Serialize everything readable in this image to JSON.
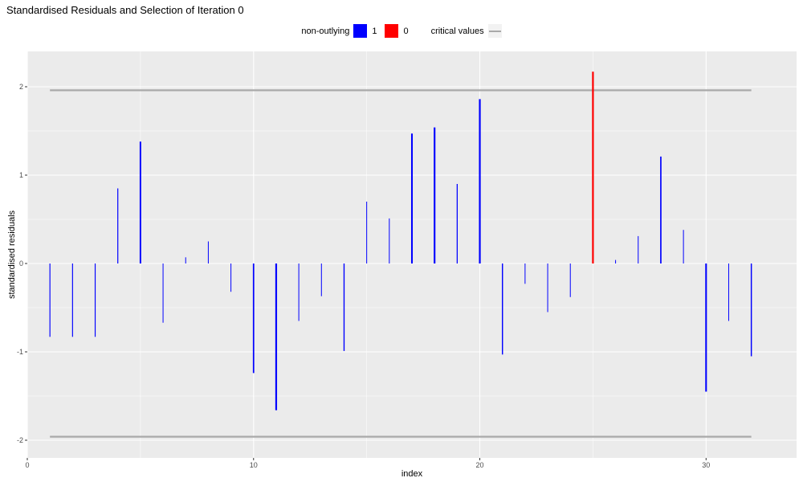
{
  "chart_data": {
    "type": "bar",
    "title": "Standardised Residuals and Selection of Iteration 0",
    "xlabel": "index",
    "ylabel": "standardised residuals",
    "xlim": [
      0,
      34
    ],
    "ylim": [
      -2.2,
      2.4
    ],
    "x_ticks": [
      0,
      10,
      20,
      30
    ],
    "y_ticks": [
      -2,
      -1,
      0,
      1,
      2
    ],
    "grid": true,
    "legend_position": "top",
    "legend": {
      "title": "non-outlying",
      "entries": [
        {
          "label": "1",
          "color": "#0000ff"
        },
        {
          "label": "0",
          "color": "#ff0000"
        }
      ],
      "line_label": "critical values",
      "line_color": "#a9a9a9"
    },
    "critical_values": [
      1.96,
      -1.96
    ],
    "critical_x_range": [
      1,
      32
    ],
    "x": [
      1,
      2,
      3,
      4,
      5,
      6,
      7,
      8,
      9,
      10,
      11,
      12,
      13,
      14,
      15,
      16,
      17,
      18,
      19,
      20,
      21,
      22,
      23,
      24,
      25,
      26,
      27,
      28,
      29,
      30,
      31,
      32
    ],
    "values": [
      -0.83,
      -0.83,
      -0.83,
      0.85,
      1.38,
      -0.67,
      0.07,
      0.25,
      -0.32,
      -1.24,
      -1.66,
      -0.65,
      -0.37,
      -0.99,
      0.7,
      0.51,
      1.47,
      1.54,
      0.9,
      1.86,
      -1.03,
      -0.23,
      -0.55,
      -0.38,
      2.17,
      0.04,
      0.31,
      1.21,
      0.38,
      -1.45,
      -0.65,
      -1.05
    ],
    "selected": [
      1,
      1,
      1,
      1,
      1,
      1,
      1,
      1,
      1,
      1,
      1,
      1,
      1,
      1,
      1,
      1,
      1,
      1,
      1,
      1,
      1,
      1,
      1,
      1,
      0,
      1,
      1,
      1,
      1,
      1,
      1,
      1
    ],
    "colors": {
      "non_outlying": "#0000ff",
      "outlying": "#ff0000",
      "critical": "#a9a9a9",
      "panel": "#ebebeb",
      "grid": "#ffffff"
    }
  }
}
